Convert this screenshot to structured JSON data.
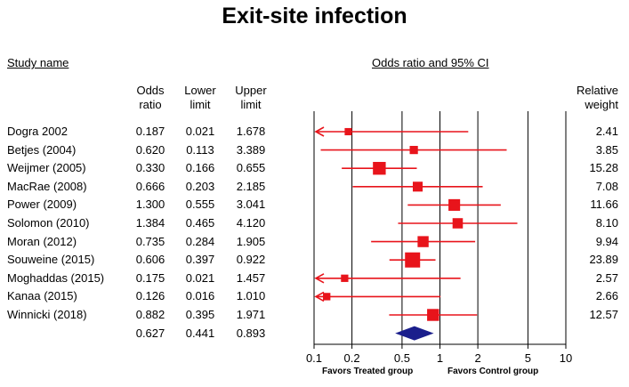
{
  "chart_data": {
    "type": "forest",
    "title": "Exit-site infection",
    "headers": {
      "study_name": "Study name",
      "plot_title": "Odds ratio and 95% CI",
      "odds_ratio": [
        "Odds",
        "ratio"
      ],
      "lower_limit": [
        "Lower",
        "limit"
      ],
      "upper_limit": [
        "Upper",
        "limit"
      ],
      "relative_weight": [
        "Relative",
        "weight"
      ]
    },
    "studies": [
      {
        "name": "Dogra 2002",
        "or": "0.187",
        "lower": "0.021",
        "upper": "1.678",
        "weight": "2.41"
      },
      {
        "name": "Betjes (2004)",
        "or": "0.620",
        "lower": "0.113",
        "upper": "3.389",
        "weight": "3.85"
      },
      {
        "name": "Weijmer (2005)",
        "or": "0.330",
        "lower": "0.166",
        "upper": "0.655",
        "weight": "15.28"
      },
      {
        "name": "MacRae (2008)",
        "or": "0.666",
        "lower": "0.203",
        "upper": "2.185",
        "weight": "7.08"
      },
      {
        "name": "Power (2009)",
        "or": "1.300",
        "lower": "0.555",
        "upper": "3.041",
        "weight": "11.66"
      },
      {
        "name": "Solomon (2010)",
        "or": "1.384",
        "lower": "0.465",
        "upper": "4.120",
        "weight": "8.10"
      },
      {
        "name": "Moran (2012)",
        "or": "0.735",
        "lower": "0.284",
        "upper": "1.905",
        "weight": "9.94"
      },
      {
        "name": "Souweine (2015)",
        "or": "0.606",
        "lower": "0.397",
        "upper": "0.922",
        "weight": "23.89"
      },
      {
        "name": "Moghaddas (2015)",
        "or": "0.175",
        "lower": "0.021",
        "upper": "1.457",
        "weight": "2.57"
      },
      {
        "name": "Kanaa (2015)",
        "or": "0.126",
        "lower": "0.016",
        "upper": "1.010",
        "weight": "2.66"
      },
      {
        "name": "Winnicki (2018)",
        "or": "0.882",
        "lower": "0.395",
        "upper": "1.971",
        "weight": "12.57"
      }
    ],
    "pooled": {
      "or": "0.627",
      "lower": "0.441",
      "upper": "0.893"
    },
    "x_scale": "log",
    "xlim": [
      0.1,
      10
    ],
    "x_ticks": [
      "0.1",
      "0.2",
      "0.5",
      "1",
      "2",
      "5",
      "10"
    ],
    "favors_left": "Favors Treated group",
    "favors_right": "Favors Control group",
    "colors": {
      "study": "#e8141b",
      "pooled": "#1b1f8c",
      "axis": "#000000"
    }
  }
}
